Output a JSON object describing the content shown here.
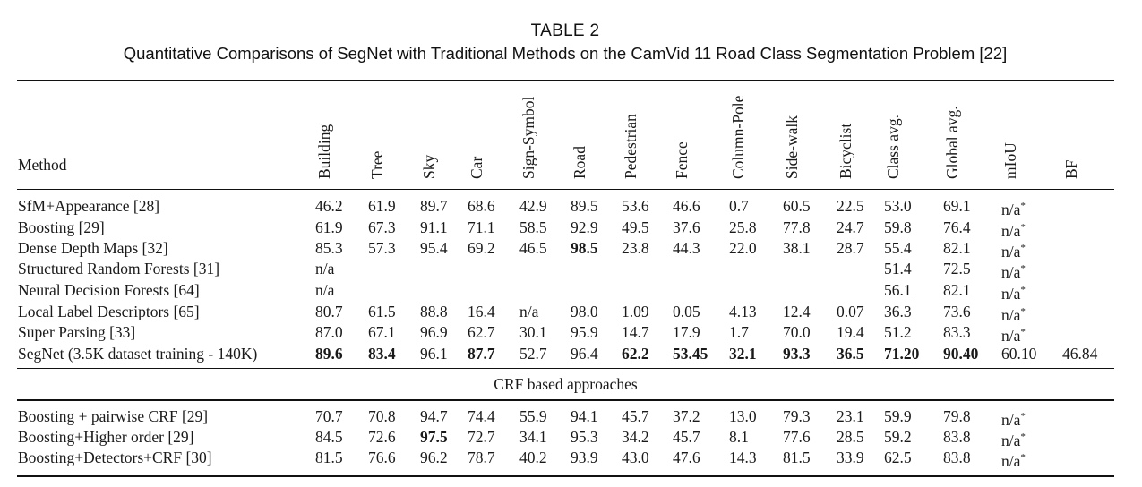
{
  "table": {
    "number": "TABLE 2",
    "title": "Quantitative Comparisons of SegNet with Traditional Methods on the CamVid 11 Road Class Segmentation Problem [22]",
    "method_header": "Method",
    "columns": [
      "Building",
      "Tree",
      "Sky",
      "Car",
      "Sign-Symbol",
      "Road",
      "Pedestrian",
      "Fence",
      "Column-Pole",
      "Side-walk",
      "Bicyclist",
      "Class avg.",
      "Global avg.",
      "mIoU",
      "BF"
    ],
    "rows": [
      {
        "method": "SfM+Appearance [28]",
        "values": [
          "46.2",
          "61.9",
          "89.7",
          "68.6",
          "42.9",
          "89.5",
          "53.6",
          "46.6",
          "0.7",
          "60.5",
          "22.5",
          "53.0",
          "69.1",
          "n/a*",
          ""
        ],
        "bold": []
      },
      {
        "method": "Boosting [29]",
        "values": [
          "61.9",
          "67.3",
          "91.1",
          "71.1",
          "58.5",
          "92.9",
          "49.5",
          "37.6",
          "25.8",
          "77.8",
          "24.7",
          "59.8",
          "76.4",
          "n/a*",
          ""
        ],
        "bold": []
      },
      {
        "method": "Dense Depth Maps [32]",
        "values": [
          "85.3",
          "57.3",
          "95.4",
          "69.2",
          "46.5",
          "98.5",
          "23.8",
          "44.3",
          "22.0",
          "38.1",
          "28.7",
          "55.4",
          "82.1",
          "n/a*",
          ""
        ],
        "bold": [
          5
        ]
      },
      {
        "method": "Structured Random Forests [31]",
        "values": [
          "n/a",
          "",
          "",
          "",
          "",
          "",
          "",
          "",
          "",
          "",
          "",
          "51.4",
          "72.5",
          "n/a*",
          ""
        ],
        "bold": []
      },
      {
        "method": "Neural Decision Forests [64]",
        "values": [
          "n/a",
          "",
          "",
          "",
          "",
          "",
          "",
          "",
          "",
          "",
          "",
          "56.1",
          "82.1",
          "n/a*",
          ""
        ],
        "bold": []
      },
      {
        "method": "Local Label Descriptors [65]",
        "values": [
          "80.7",
          "61.5",
          "88.8",
          "16.4",
          "n/a",
          "98.0",
          "1.09",
          "0.05",
          "4.13",
          "12.4",
          "0.07",
          "36.3",
          "73.6",
          "n/a*",
          ""
        ],
        "bold": []
      },
      {
        "method": "Super Parsing [33]",
        "values": [
          "87.0",
          "67.1",
          "96.9",
          "62.7",
          "30.1",
          "95.9",
          "14.7",
          "17.9",
          "1.7",
          "70.0",
          "19.4",
          "51.2",
          "83.3",
          "n/a*",
          ""
        ],
        "bold": []
      },
      {
        "method": "SegNet (3.5K dataset training - 140K)",
        "values": [
          "89.6",
          "83.4",
          "96.1",
          "87.7",
          "52.7",
          "96.4",
          "62.2",
          "53.45",
          "32.1",
          "93.3",
          "36.5",
          "71.20",
          "90.40",
          "60.10",
          "46.84"
        ],
        "bold": [
          0,
          1,
          3,
          6,
          7,
          8,
          9,
          10,
          11,
          12
        ]
      }
    ],
    "section_label": "CRF based approaches",
    "crf_rows": [
      {
        "method": "Boosting + pairwise CRF [29]",
        "values": [
          "70.7",
          "70.8",
          "94.7",
          "74.4",
          "55.9",
          "94.1",
          "45.7",
          "37.2",
          "13.0",
          "79.3",
          "23.1",
          "59.9",
          "79.8",
          "n/a*",
          ""
        ],
        "bold": []
      },
      {
        "method": "Boosting+Higher order [29]",
        "values": [
          "84.5",
          "72.6",
          "97.5",
          "72.7",
          "34.1",
          "95.3",
          "34.2",
          "45.7",
          "8.1",
          "77.6",
          "28.5",
          "59.2",
          "83.8",
          "n/a*",
          ""
        ],
        "bold": [
          2
        ]
      },
      {
        "method": "Boosting+Detectors+CRF [30]",
        "values": [
          "81.5",
          "76.6",
          "96.2",
          "78.7",
          "40.2",
          "93.9",
          "43.0",
          "47.6",
          "14.3",
          "81.5",
          "33.9",
          "62.5",
          "83.8",
          "n/a*",
          ""
        ],
        "bold": []
      }
    ]
  }
}
